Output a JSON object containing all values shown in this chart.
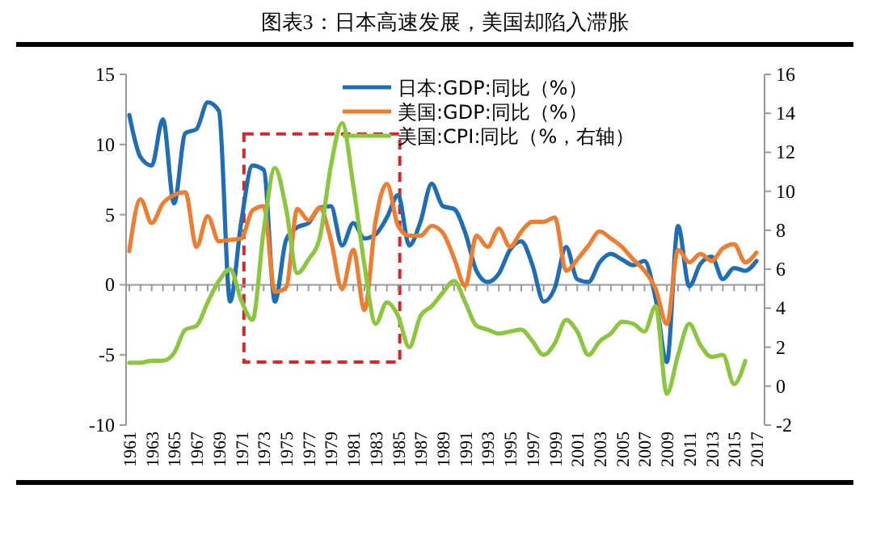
{
  "chart_data": {
    "type": "line",
    "title": "图表3：日本高速发展，美国却陷入滞胀",
    "categories": [
      "1961",
      null,
      "1963",
      null,
      "1965",
      null,
      "1967",
      null,
      "1969",
      null,
      "1971",
      null,
      "1973",
      null,
      "1975",
      null,
      "1977",
      null,
      "1979",
      null,
      "1981",
      null,
      "1983",
      null,
      "1985",
      null,
      "1987",
      null,
      "1989",
      null,
      "1991",
      null,
      "1993",
      null,
      "1995",
      null,
      "1997",
      null,
      "1999",
      null,
      "2001",
      null,
      "2003",
      null,
      "2005",
      null,
      "2007",
      null,
      "2009",
      null,
      "2011",
      null,
      "2013",
      null,
      "2015",
      null,
      "2017"
    ],
    "series": [
      {
        "name": "日本:GDP:同比（%）",
        "color": "#1f6db5",
        "values": [
          12.1,
          9.1,
          8.5,
          11.8,
          5.8,
          10.8,
          11.1,
          13.0,
          12.4,
          -1.2,
          4.5,
          8.5,
          8.2,
          -1.2,
          3.2,
          4.1,
          4.4,
          5.5,
          5.6,
          2.8,
          4.4,
          3.3,
          3.6,
          4.8,
          6.4,
          2.8,
          4.5,
          7.2,
          5.6,
          5.4,
          3.7,
          1.0,
          0.2,
          0.8,
          2.5,
          3.1,
          1.4,
          -1.2,
          -0.2,
          2.7,
          0.4,
          0.2,
          1.6,
          2.2,
          1.8,
          1.4,
          1.7,
          -1.0,
          -5.5,
          4.2,
          -0.1,
          1.5,
          2.0,
          0.4,
          1.2,
          1.0,
          1.7
        ]
      },
      {
        "name": "美国:GDP:同比（%）",
        "color": "#ed7d31",
        "values": [
          2.4,
          6.1,
          4.4,
          5.8,
          6.4,
          6.6,
          2.7,
          4.9,
          3.1,
          3.2,
          3.3,
          5.3,
          5.6,
          -0.5,
          -0.2,
          5.4,
          4.6,
          5.5,
          3.2,
          -0.3,
          2.5,
          -1.8,
          4.6,
          7.2,
          4.2,
          3.5,
          3.5,
          4.2,
          3.7,
          1.9,
          -0.1,
          3.5,
          2.7,
          4.0,
          2.7,
          3.8,
          4.5,
          4.5,
          4.8,
          1.0,
          1.8,
          2.8,
          3.8,
          3.3,
          2.7,
          1.8,
          1.0,
          -0.3,
          -2.8,
          2.5,
          1.6,
          2.2,
          1.7,
          2.6,
          2.9,
          1.6,
          2.3
        ]
      },
      {
        "name": "美国:CPI:同比（%，右轴）",
        "color": "#8cc63f",
        "axis": "y2",
        "values": [
          1.2,
          1.2,
          1.3,
          1.3,
          1.7,
          2.9,
          3.1,
          4.3,
          5.4,
          6.0,
          4.4,
          3.4,
          8.0,
          11.2,
          9.1,
          5.8,
          6.5,
          7.6,
          11.3,
          13.5,
          10.3,
          6.2,
          3.2,
          4.3,
          3.6,
          2.0,
          3.6,
          4.1,
          4.8,
          5.4,
          4.3,
          3.1,
          2.9,
          2.7,
          2.8,
          2.9,
          2.3,
          1.6,
          2.2,
          3.4,
          2.8,
          1.6,
          2.3,
          2.7,
          3.3,
          3.2,
          2.8,
          4.1,
          -0.4,
          1.6,
          3.2,
          2.1,
          1.5,
          1.6,
          0.1,
          1.3,
          null
        ]
      }
    ],
    "ylim": [
      -10,
      15
    ],
    "yticks": [
      -10,
      -5,
      0,
      5,
      10,
      15
    ],
    "y2lim": [
      -2,
      16
    ],
    "y2ticks": [
      -2,
      0,
      2,
      4,
      6,
      8,
      10,
      12,
      14,
      16
    ],
    "legend": "top"
  }
}
